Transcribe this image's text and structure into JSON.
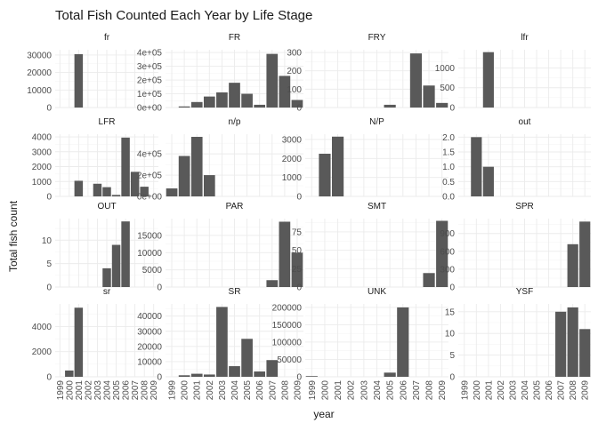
{
  "chart_data": {
    "type": "bar",
    "title": "Total Fish Counted Each Year by Life Stage",
    "xlabel": "year",
    "ylabel": "Total fish count",
    "categories": [
      "1999",
      "2000",
      "2001",
      "2002",
      "2003",
      "2004",
      "2005",
      "2006",
      "2007",
      "2008",
      "2009"
    ],
    "bar_color": "#595959",
    "grid": true,
    "facets": [
      {
        "name": "fr",
        "ylim": [
          0,
          33000
        ],
        "yticks": [
          0,
          10000,
          20000,
          30000
        ],
        "yticklabels": [
          "0",
          "10000",
          "20000",
          "30000"
        ],
        "values": [
          0,
          0,
          30500,
          0,
          0,
          0,
          0,
          0,
          0,
          0,
          0
        ]
      },
      {
        "name": "FR",
        "ylim": [
          0,
          420000
        ],
        "yticks": [
          0,
          100000,
          200000,
          300000,
          400000
        ],
        "yticklabels": [
          "0e+00",
          "1e+05",
          "2e+05",
          "3e+05",
          "4e+05"
        ],
        "values": [
          0,
          8000,
          40000,
          80000,
          110000,
          180000,
          100000,
          20000,
          390000,
          230000,
          55000
        ]
      },
      {
        "name": "FRY",
        "ylim": [
          0,
          315
        ],
        "yticks": [
          0,
          100,
          200,
          300
        ],
        "yticklabels": [
          "0",
          "100",
          "200",
          "300"
        ],
        "values": [
          0,
          0,
          0,
          0,
          0,
          0,
          15,
          0,
          295,
          120,
          25
        ]
      },
      {
        "name": "lfr",
        "ylim": [
          0,
          1460
        ],
        "yticks": [
          0,
          500,
          1000
        ],
        "yticklabels": [
          "0",
          "500",
          "1000"
        ],
        "values": [
          0,
          0,
          1400,
          0,
          0,
          0,
          0,
          0,
          0,
          0,
          0
        ]
      },
      {
        "name": "LFR",
        "ylim": [
          0,
          4180
        ],
        "yticks": [
          0,
          1000,
          2000,
          3000,
          4000
        ],
        "yticklabels": [
          "0",
          "1000",
          "2000",
          "3000",
          "4000"
        ],
        "values": [
          0,
          0,
          1050,
          0,
          850,
          620,
          100,
          3950,
          1650,
          650,
          0
        ]
      },
      {
        "name": "n/p",
        "ylim": [
          0,
          585000
        ],
        "yticks": [
          0,
          200000,
          400000
        ],
        "yticklabels": [
          "0e+00",
          "2e+05",
          "4e+05"
        ],
        "values": [
          75000,
          380000,
          560000,
          200000,
          0,
          0,
          0,
          0,
          0,
          0,
          0
        ]
      },
      {
        "name": "N/P",
        "ylim": [
          0,
          3280
        ],
        "yticks": [
          0,
          1000,
          2000,
          3000
        ],
        "yticklabels": [
          "0",
          "1000",
          "2000",
          "3000"
        ],
        "values": [
          0,
          2250,
          3150,
          0,
          0,
          0,
          0,
          0,
          0,
          0,
          0
        ]
      },
      {
        "name": "out",
        "ylim": [
          0,
          2.1
        ],
        "yticks": [
          0,
          0.5,
          1,
          1.5,
          2
        ],
        "yticklabels": [
          "0.0",
          "0.5",
          "1.0",
          "1.5",
          "2.0"
        ],
        "values": [
          0,
          2,
          1,
          0,
          0,
          0,
          0,
          0,
          0,
          0,
          0
        ]
      },
      {
        "name": "OUT",
        "ylim": [
          0,
          14.6
        ],
        "yticks": [
          0,
          5,
          10
        ],
        "yticklabels": [
          "0",
          "5",
          "10"
        ],
        "values": [
          0,
          0,
          0,
          0,
          0,
          4,
          9,
          14,
          0,
          0,
          0
        ]
      },
      {
        "name": "PAR",
        "ylim": [
          0,
          19900
        ],
        "yticks": [
          0,
          5000,
          10000,
          15000
        ],
        "yticklabels": [
          "0",
          "5000",
          "10000",
          "15000"
        ],
        "values": [
          0,
          0,
          0,
          0,
          0,
          0,
          0,
          0,
          2000,
          19000,
          10000
        ]
      },
      {
        "name": "SMT",
        "ylim": [
          0,
          93
        ],
        "yticks": [
          0,
          25,
          50,
          75
        ],
        "yticklabels": [
          "0",
          "25",
          "50",
          "75"
        ],
        "values": [
          0,
          0,
          0,
          0,
          0,
          0,
          0,
          0,
          0,
          19,
          90
        ]
      },
      {
        "name": "SPR",
        "ylim": [
          0,
          1150
        ],
        "yticks": [
          0,
          300,
          600,
          900
        ],
        "yticklabels": [
          "0",
          "300",
          "600",
          "900"
        ],
        "values": [
          0,
          0,
          0,
          0,
          0,
          0,
          0,
          0,
          0,
          720,
          1100
        ]
      },
      {
        "name": "sr",
        "ylim": [
          0,
          5800
        ],
        "yticks": [
          0,
          2000,
          4000
        ],
        "yticklabels": [
          "0",
          "2000",
          "4000"
        ],
        "values": [
          0,
          500,
          5500,
          0,
          0,
          0,
          0,
          0,
          0,
          0,
          0
        ]
      },
      {
        "name": "SR",
        "ylim": [
          0,
          48000
        ],
        "yticks": [
          0,
          10000,
          20000,
          30000,
          40000
        ],
        "yticklabels": [
          "0",
          "10000",
          "20000",
          "30000",
          "40000"
        ],
        "values": [
          0,
          1000,
          2000,
          1500,
          46000,
          7000,
          25000,
          3500,
          11000,
          0,
          0
        ]
      },
      {
        "name": "UNK",
        "ylim": [
          0,
          210000
        ],
        "yticks": [
          0,
          50000,
          100000,
          150000,
          200000
        ],
        "yticklabels": [
          "0",
          "50000",
          "100000",
          "150000",
          "200000"
        ],
        "values": [
          2000,
          0,
          0,
          0,
          0,
          0,
          12000,
          200000,
          0,
          0,
          0
        ]
      },
      {
        "name": "YSF",
        "ylim": [
          0,
          16.8
        ],
        "yticks": [
          0,
          5,
          10,
          15
        ],
        "yticklabels": [
          "0",
          "5",
          "10",
          "15"
        ],
        "values": [
          0,
          0,
          0,
          0,
          0,
          0,
          0,
          0,
          15,
          16,
          11
        ]
      }
    ]
  }
}
